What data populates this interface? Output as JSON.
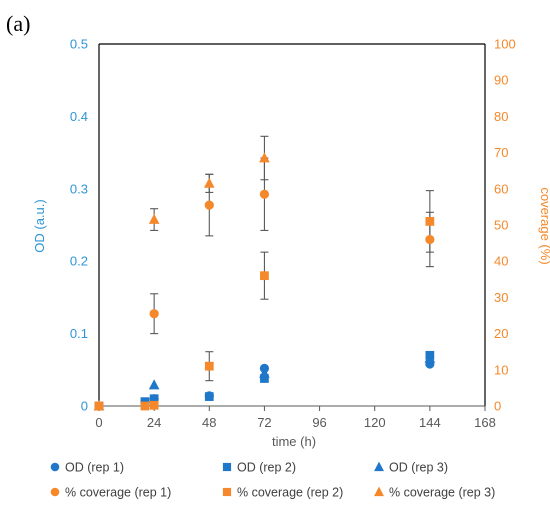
{
  "panel_label": "(a)",
  "colors": {
    "od": "#1f77c9",
    "od_axis": "#2e96d6",
    "coverage": "#f5882a",
    "coverage_axis": "#f5882a",
    "axis": "#595959",
    "frame": "#000000",
    "errorbar": "#595959"
  },
  "chart_data": {
    "type": "scatter",
    "title": "",
    "xlabel": "time (h)",
    "ylabel": "OD (a.u.)",
    "y2label": "coverage (%)",
    "xlim": [
      0,
      168
    ],
    "ylim": [
      0,
      0.5
    ],
    "y2lim": [
      0,
      100
    ],
    "xticks": [
      0,
      24,
      48,
      72,
      96,
      120,
      144,
      168
    ],
    "yticks": [
      0,
      0.1,
      0.2,
      0.3,
      0.4,
      0.5
    ],
    "y2ticks": [
      0,
      10,
      20,
      30,
      40,
      50,
      60,
      70,
      80,
      90,
      100
    ],
    "ytick_labels": [
      "0",
      "0.1",
      "0.2",
      "0.3",
      "0.4",
      "0.5"
    ],
    "grid": false,
    "legend_position": "bottom",
    "series": [
      {
        "name": "OD (rep 1)",
        "axis": "left",
        "marker": "circle",
        "color": "#1f77c9",
        "points": [
          {
            "x": 0,
            "y": 0
          },
          {
            "x": 20,
            "y": 0.005
          },
          {
            "x": 24,
            "y": 0.01
          },
          {
            "x": 48,
            "y": 0.014
          },
          {
            "x": 72,
            "y": 0.052
          },
          {
            "x": 144,
            "y": 0.058
          }
        ]
      },
      {
        "name": "OD (rep 2)",
        "axis": "left",
        "marker": "square",
        "color": "#1f77c9",
        "points": [
          {
            "x": 0,
            "y": 0
          },
          {
            "x": 20,
            "y": 0.006
          },
          {
            "x": 24,
            "y": 0.01
          },
          {
            "x": 48,
            "y": 0.013
          },
          {
            "x": 72,
            "y": 0.038
          },
          {
            "x": 144,
            "y": 0.07
          }
        ]
      },
      {
        "name": "OD (rep 3)",
        "axis": "left",
        "marker": "triangle",
        "color": "#1f77c9",
        "points": [
          {
            "x": 0,
            "y": 0
          },
          {
            "x": 24,
            "y": 0.029
          },
          {
            "x": 72,
            "y": 0.045
          },
          {
            "x": 144,
            "y": 0.066
          }
        ]
      },
      {
        "name": "% coverage (rep 1)",
        "axis": "right",
        "marker": "circle",
        "color": "#f5882a",
        "points": [
          {
            "x": 0,
            "y": 0,
            "err": null
          },
          {
            "x": 24,
            "y": 25.5,
            "err": 5.5
          },
          {
            "x": 48,
            "y": 55.5,
            "err": 8.5
          },
          {
            "x": 72,
            "y": 58.5,
            "err": 10
          },
          {
            "x": 144,
            "y": 46,
            "err": 7.5
          }
        ]
      },
      {
        "name": "% coverage (rep 2)",
        "axis": "right",
        "marker": "square",
        "color": "#f5882a",
        "points": [
          {
            "x": 0,
            "y": 0,
            "err": null
          },
          {
            "x": 20,
            "y": 0,
            "err": 1.5
          },
          {
            "x": 24,
            "y": 0.2,
            "err": null
          },
          {
            "x": 48,
            "y": 11,
            "err": 4
          },
          {
            "x": 72,
            "y": 36,
            "err": 6.5
          },
          {
            "x": 144,
            "y": 51,
            "err": 8.5
          }
        ]
      },
      {
        "name": "% coverage (rep 3)",
        "axis": "right",
        "marker": "triangle",
        "color": "#f5882a",
        "points": [
          {
            "x": 0,
            "y": 0,
            "err": null
          },
          {
            "x": 24,
            "y": 51.5,
            "err": 3
          },
          {
            "x": 48,
            "y": 61.5,
            "err": 2.5
          },
          {
            "x": 72,
            "y": 68.5,
            "err": 6
          }
        ]
      }
    ]
  }
}
